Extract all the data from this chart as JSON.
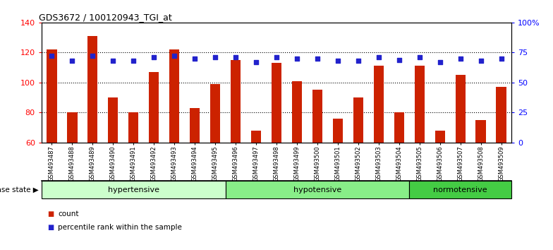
{
  "title": "GDS3672 / 100120943_TGI_at",
  "samples": [
    "GSM493487",
    "GSM493488",
    "GSM493489",
    "GSM493490",
    "GSM493491",
    "GSM493492",
    "GSM493493",
    "GSM493494",
    "GSM493495",
    "GSM493496",
    "GSM493497",
    "GSM493498",
    "GSM493499",
    "GSM493500",
    "GSM493501",
    "GSM493502",
    "GSM493503",
    "GSM493504",
    "GSM493505",
    "GSM493506",
    "GSM493507",
    "GSM493508",
    "GSM493509"
  ],
  "counts": [
    122,
    80,
    131,
    90,
    80,
    107,
    122,
    83,
    99,
    115,
    68,
    113,
    101,
    95,
    76,
    90,
    111,
    80,
    111,
    68,
    105,
    75,
    97
  ],
  "percentiles": [
    72,
    68,
    72,
    68,
    68,
    71,
    72,
    70,
    71,
    71,
    67,
    71,
    70,
    70,
    68,
    68,
    71,
    69,
    71,
    67,
    70,
    68,
    70
  ],
  "groups": [
    {
      "label": "hypertensive",
      "start": 0,
      "end": 9,
      "color": "#ccffcc"
    },
    {
      "label": "hypotensive",
      "start": 9,
      "end": 18,
      "color": "#88ee88"
    },
    {
      "label": "normotensive",
      "start": 18,
      "end": 23,
      "color": "#44cc44"
    }
  ],
  "ylim_left": [
    60,
    140
  ],
  "ylim_right": [
    0,
    100
  ],
  "yticks_left": [
    60,
    80,
    100,
    120,
    140
  ],
  "yticks_right": [
    0,
    25,
    50,
    75,
    100
  ],
  "ytick_labels_right": [
    "0",
    "25",
    "50",
    "75",
    "100%"
  ],
  "bar_color": "#cc2200",
  "dot_color": "#2222cc",
  "bar_width": 0.5,
  "bg_color": "#ffffff",
  "plot_bg_color": "#ffffff",
  "legend_count_label": "count",
  "legend_pct_label": "percentile rank within the sample",
  "disease_state_label": "disease state"
}
